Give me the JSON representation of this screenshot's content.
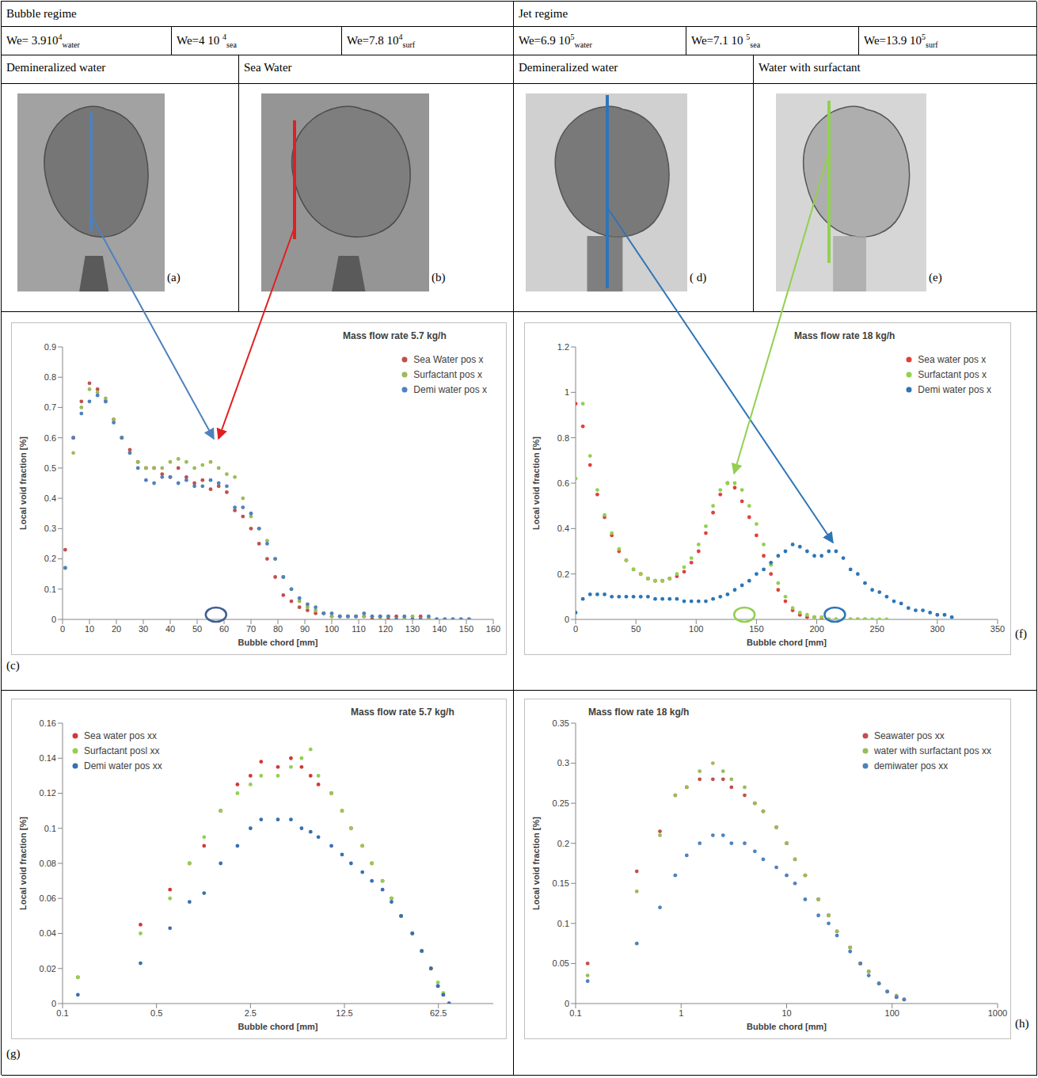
{
  "table": {
    "regimes": [
      "Bubble regime",
      "Jet regime"
    ],
    "weber": [
      {
        "text": "We= 3.910",
        "sup": "4",
        "sub": "water"
      },
      {
        "text": "We=4 10 ",
        "sup": "4",
        "sub": "sea"
      },
      {
        "text": "We=7.8 10",
        "sup": "4",
        "sub": "surf"
      },
      {
        "text": "We=6.9 10",
        "sup": "5",
        "sub": "water"
      },
      {
        "text": "We=7.1 10 ",
        "sup": "5",
        "sub": "sea"
      },
      {
        "text": "We=13.9 10",
        "sup": "5",
        "sub": "surf"
      }
    ],
    "fluids": [
      "Demineralized water",
      "Sea Water",
      "Demineralized water",
      "Water with surfactant"
    ],
    "photos": [
      "(a)",
      "(b)",
      "( d)",
      "(e)"
    ]
  },
  "chart_data": [
    {
      "type": "scatter",
      "label": "(c)",
      "title": "Mass flow rate 5.7 kg/h",
      "x_label": "Bubble chord [mm]",
      "y_label": "Local void fraction [%]",
      "xlim": [
        0,
        160
      ],
      "xticks": [
        0,
        10,
        20,
        30,
        40,
        50,
        60,
        70,
        80,
        90,
        100,
        110,
        120,
        130,
        140,
        150,
        160
      ],
      "ylim": [
        0,
        0.9
      ],
      "yticks": [
        0,
        0.1,
        0.2,
        0.3,
        0.4,
        0.5,
        0.6,
        0.7,
        0.8,
        0.9
      ],
      "grid": false,
      "legend": "upper right",
      "marker": "circle",
      "x": [
        1,
        4,
        7,
        10,
        13,
        16,
        19,
        22,
        25,
        28,
        31,
        34,
        37,
        40,
        43,
        46,
        49,
        52,
        55,
        58,
        61,
        64,
        67,
        70,
        73,
        76,
        79,
        82,
        85,
        88,
        91,
        94,
        97,
        100,
        103,
        106,
        109,
        112,
        115,
        118,
        121,
        124,
        127,
        130,
        133,
        136,
        139,
        142,
        145,
        148,
        151
      ],
      "series": [
        {
          "name": "Sea Water pos x",
          "color": "#c0504d",
          "values": [
            0.23,
            0.6,
            0.72,
            0.78,
            0.76,
            0.72,
            0.66,
            0.6,
            0.56,
            0.52,
            0.5,
            0.5,
            0.48,
            0.47,
            0.5,
            0.47,
            0.45,
            0.46,
            0.43,
            0.44,
            0.42,
            0.36,
            0.34,
            0.3,
            0.25,
            0.2,
            0.14,
            0.08,
            0.06,
            0.04,
            0.03,
            0.02,
            0.02,
            0.01,
            0.01,
            0.01,
            0.01,
            0.01,
            0,
            0.01,
            0,
            0.01,
            0,
            0,
            0.01,
            0,
            0,
            0,
            0,
            0,
            0
          ]
        },
        {
          "name": "Surfactant pos x",
          "color": "#9bbb59",
          "values": [
            0.17,
            0.55,
            0.7,
            0.76,
            0.75,
            0.73,
            0.66,
            0.6,
            0.55,
            0.52,
            0.5,
            0.5,
            0.5,
            0.52,
            0.53,
            0.52,
            0.5,
            0.51,
            0.52,
            0.5,
            0.48,
            0.47,
            0.4,
            0.34,
            0.3,
            0.26,
            0.2,
            0.14,
            0.1,
            0.06,
            0.04,
            0.03,
            0.02,
            0.01,
            0.01,
            0.01,
            0.01,
            0.01,
            0.01,
            0,
            0.01,
            0,
            0,
            0.01,
            0,
            0,
            0,
            0,
            0,
            0,
            0
          ]
        },
        {
          "name": "Demi water pos x",
          "color": "#4f81bd",
          "values": [
            0.17,
            0.6,
            0.68,
            0.72,
            0.74,
            0.72,
            0.65,
            0.6,
            0.55,
            0.5,
            0.46,
            0.45,
            0.47,
            0.47,
            0.45,
            0.46,
            0.44,
            0.44,
            0.46,
            0.45,
            0.44,
            0.37,
            0.37,
            0.35,
            0.3,
            0.25,
            0.2,
            0.14,
            0.1,
            0.07,
            0.05,
            0.04,
            0.02,
            0.02,
            0.01,
            0.01,
            0.01,
            0.02,
            0.01,
            0.01,
            0.01,
            0,
            0.01,
            0,
            0,
            0.01,
            0,
            0,
            0,
            0,
            0
          ]
        }
      ],
      "highlights": [
        {
          "x": 57,
          "color": "#3f5f8f"
        }
      ]
    },
    {
      "type": "scatter",
      "label": "(f)",
      "title": "Mass flow rate 18 kg/h",
      "x_label": "Bubble chord [mm]",
      "y_label": "Local void fraction [%]",
      "xlim": [
        0,
        350
      ],
      "xticks": [
        0,
        50,
        100,
        150,
        200,
        250,
        300,
        350
      ],
      "ylim": [
        0,
        1.2
      ],
      "yticks": [
        0,
        0.2,
        0.4,
        0.6,
        0.8,
        1,
        1.2
      ],
      "grid": false,
      "legend": "upper right",
      "marker": "circle",
      "x": [
        0,
        6,
        12,
        18,
        24,
        30,
        36,
        42,
        48,
        54,
        60,
        66,
        72,
        78,
        84,
        90,
        96,
        102,
        108,
        114,
        120,
        126,
        132,
        138,
        144,
        150,
        156,
        162,
        168,
        174,
        180,
        186,
        192,
        198,
        204,
        210,
        216,
        222,
        228,
        234,
        240,
        246,
        252,
        258,
        264,
        270,
        276,
        282,
        288,
        294,
        300,
        306,
        312
      ],
      "series": [
        {
          "name": "Sea water pos x",
          "color": "#e0403a",
          "values": [
            0.95,
            0.85,
            0.68,
            0.55,
            0.45,
            0.37,
            0.3,
            0.26,
            0.22,
            0.2,
            0.18,
            0.17,
            0.17,
            0.18,
            0.19,
            0.21,
            0.25,
            0.3,
            0.38,
            0.47,
            0.55,
            0.6,
            0.58,
            0.52,
            0.45,
            0.37,
            0.28,
            0.2,
            0.13,
            0.08,
            0.04,
            0.02,
            0.01,
            0.01,
            0,
            0,
            0,
            0,
            0,
            0,
            0,
            null,
            null,
            null,
            null,
            null,
            null,
            null,
            null,
            null,
            null,
            null,
            null
          ]
        },
        {
          "name": "Surfactant pos x",
          "color": "#92d050",
          "values": [
            0.62,
            0.95,
            0.72,
            0.57,
            0.46,
            0.38,
            0.31,
            0.26,
            0.22,
            0.2,
            0.18,
            0.17,
            0.17,
            0.18,
            0.2,
            0.23,
            0.27,
            0.33,
            0.41,
            0.5,
            0.57,
            0.6,
            0.6,
            0.57,
            0.5,
            0.42,
            0.33,
            0.24,
            0.16,
            0.1,
            0.05,
            0.03,
            0.02,
            0.01,
            0.01,
            0,
            0,
            0,
            0,
            0,
            0,
            0,
            0,
            0,
            null,
            null,
            null,
            null,
            null,
            null,
            null,
            null,
            null
          ]
        },
        {
          "name": "Demi water pos x",
          "color": "#2e75b6",
          "values": [
            0.03,
            0.09,
            0.11,
            0.11,
            0.11,
            0.1,
            0.1,
            0.1,
            0.1,
            0.1,
            0.1,
            0.09,
            0.09,
            0.09,
            0.09,
            0.08,
            0.08,
            0.08,
            0.08,
            0.09,
            0.1,
            0.11,
            0.13,
            0.15,
            0.17,
            0.2,
            0.22,
            0.25,
            0.28,
            0.3,
            0.33,
            0.32,
            0.3,
            0.28,
            0.28,
            0.3,
            0.3,
            0.27,
            0.22,
            0.2,
            0.16,
            0.13,
            0.12,
            0.1,
            0.08,
            0.07,
            0.05,
            0.04,
            0.04,
            0.03,
            0.02,
            0.02,
            0.01
          ]
        }
      ],
      "highlights": [
        {
          "x": 140,
          "color": "#92d050"
        },
        {
          "x": 215,
          "color": "#2e75b6"
        }
      ]
    },
    {
      "type": "scatter",
      "label": "(g)",
      "title": "Mass flow rate 5.7 kg/h",
      "x_label": "Bubble chord [mm]",
      "y_label": "Local void fraction [%]",
      "log": "x",
      "xlim": [
        0.1,
        160
      ],
      "xticks": [
        0.1,
        0.5,
        2.5,
        12.5,
        62.5
      ],
      "ylim": [
        0,
        0.16
      ],
      "yticks": [
        0,
        0.02,
        0.04,
        0.06,
        0.08,
        0.1,
        0.12,
        0.14,
        0.16
      ],
      "grid": false,
      "legend": "upper left",
      "marker": "circle",
      "x": [
        0.13,
        0.38,
        0.63,
        0.88,
        1.13,
        1.5,
        2,
        2.5,
        3,
        4,
        5,
        6,
        7,
        8,
        10,
        12,
        14,
        17,
        20,
        24,
        28,
        33,
        40,
        47,
        55,
        62,
        68,
        75
      ],
      "series": [
        {
          "name": "Sea water pos xx",
          "color": "#d03a3a",
          "values": [
            0.015,
            0.045,
            0.065,
            0.08,
            0.09,
            0.11,
            0.125,
            0.13,
            0.138,
            0.135,
            0.14,
            0.135,
            0.13,
            0.125,
            0.12,
            0.11,
            0.1,
            0.09,
            0.08,
            0.07,
            0.06,
            0.05,
            0.04,
            0.03,
            0.02,
            0.01,
            0.005,
            0
          ]
        },
        {
          "name": "Surfactant posl xx",
          "color": "#92d050",
          "values": [
            0.015,
            0.04,
            0.06,
            0.08,
            0.095,
            0.11,
            0.12,
            0.125,
            0.13,
            0.13,
            0.135,
            0.14,
            0.145,
            0.13,
            0.12,
            0.11,
            0.1,
            0.09,
            0.08,
            0.07,
            0.06,
            0.05,
            0.04,
            0.03,
            0.02,
            0.012,
            0.006,
            0
          ]
        },
        {
          "name": "Demi water pos xx",
          "color": "#3a6fb0",
          "values": [
            0.005,
            0.023,
            0.043,
            0.058,
            0.063,
            0.08,
            0.09,
            0.1,
            0.105,
            0.105,
            0.105,
            0.1,
            0.098,
            0.095,
            0.09,
            0.085,
            0.08,
            0.075,
            0.07,
            0.065,
            0.058,
            0.05,
            0.04,
            0.03,
            0.02,
            0.01,
            0.005,
            0
          ]
        }
      ]
    },
    {
      "type": "scatter",
      "label": "(h)",
      "title": "Mass flow rate 18 kg/h",
      "x_label": "Bubble chord [mm]",
      "y_label": "Local void fraction [%]",
      "log": "x",
      "xlim": [
        0.1,
        1000
      ],
      "xticks": [
        0.1,
        1,
        10,
        100,
        1000
      ],
      "ylim": [
        0,
        0.35
      ],
      "yticks": [
        0,
        0.05,
        0.1,
        0.15,
        0.2,
        0.25,
        0.3,
        0.35
      ],
      "grid": false,
      "legend": "upper right",
      "marker": "circle",
      "x": [
        0.13,
        0.38,
        0.63,
        0.88,
        1.13,
        1.5,
        2,
        2.5,
        3,
        4,
        5,
        6,
        8,
        10,
        12,
        15,
        20,
        25,
        30,
        40,
        50,
        60,
        75,
        90,
        110,
        130
      ],
      "series": [
        {
          "name": "Seawater pos xx",
          "color": "#c0504d",
          "values": [
            0.05,
            0.165,
            0.215,
            0.26,
            0.27,
            0.28,
            0.28,
            0.28,
            0.27,
            0.26,
            0.25,
            0.24,
            0.22,
            0.2,
            0.18,
            0.16,
            0.13,
            0.11,
            0.09,
            0.07,
            0.05,
            0.04,
            0.025,
            0.015,
            0.008,
            0.005
          ]
        },
        {
          "name": "water with surfactant pos xx",
          "color": "#9bbb59",
          "values": [
            0.035,
            0.14,
            0.21,
            0.26,
            0.27,
            0.29,
            0.3,
            0.29,
            0.28,
            0.27,
            0.25,
            0.24,
            0.22,
            0.2,
            0.18,
            0.16,
            0.13,
            0.11,
            0.09,
            0.07,
            0.05,
            0.04,
            0.025,
            0.015,
            0.01,
            0.005
          ]
        },
        {
          "name": "demiwater pos xx",
          "color": "#4f81bd",
          "values": [
            0.028,
            0.075,
            0.12,
            0.16,
            0.185,
            0.2,
            0.21,
            0.21,
            0.2,
            0.2,
            0.19,
            0.18,
            0.17,
            0.16,
            0.15,
            0.13,
            0.11,
            0.1,
            0.085,
            0.065,
            0.05,
            0.035,
            0.025,
            0.015,
            0.008,
            0.005
          ]
        }
      ]
    }
  ]
}
